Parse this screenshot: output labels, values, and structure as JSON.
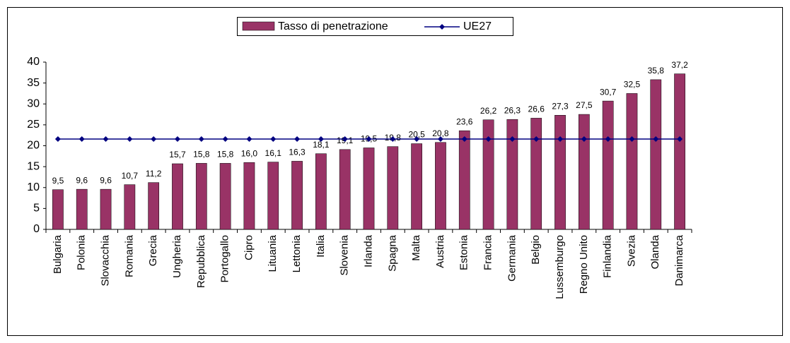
{
  "chart_data": {
    "type": "bar",
    "categories": [
      "Bulgaria",
      "Polonia",
      "Slovacchia",
      "Romania",
      "Grecia",
      "Ungheria",
      "Repubblica",
      "Portogallo",
      "Cipro",
      "Lituania",
      "Lettonia",
      "Italia",
      "Slovenia",
      "Irlanda",
      "Spagna",
      "Malta",
      "Austria",
      "Estonia",
      "Francia",
      "Germania",
      "Belgio",
      "Lussemburgo",
      "Regno Unito",
      "Finlandia",
      "Svezia",
      "Olanda",
      "Danimarca"
    ],
    "series": [
      {
        "name": "Tasso di penetrazione",
        "type": "bar",
        "color": "#993366",
        "values": [
          9.5,
          9.6,
          9.6,
          10.7,
          11.2,
          15.7,
          15.8,
          15.8,
          16.0,
          16.1,
          16.3,
          18.1,
          19.1,
          19.5,
          19.8,
          20.5,
          20.8,
          23.6,
          26.2,
          26.3,
          26.6,
          27.3,
          27.5,
          30.7,
          32.5,
          35.8,
          37.2
        ],
        "value_labels": [
          "9,5",
          "9,6",
          "9,6",
          "10,7",
          "11,2",
          "15,7",
          "15,8",
          "15,8",
          "16,0",
          "16,1",
          "16,3",
          "18,1",
          "19,1",
          "19,5",
          "19,8",
          "20,5",
          "20,8",
          "23,6",
          "26,2",
          "26,3",
          "26,6",
          "27,3",
          "27,5",
          "30,7",
          "32,5",
          "35,8",
          "37,2"
        ]
      },
      {
        "name": "UE27",
        "type": "line",
        "color": "#000080",
        "values": [
          21.6,
          21.6,
          21.6,
          21.6,
          21.6,
          21.6,
          21.6,
          21.6,
          21.6,
          21.6,
          21.6,
          21.6,
          21.6,
          21.6,
          21.6,
          21.6,
          21.6,
          21.6,
          21.6,
          21.6,
          21.6,
          21.6,
          21.6,
          21.6,
          21.6,
          21.6,
          21.6
        ]
      }
    ],
    "ylim": [
      0,
      40
    ],
    "yticks": [
      0,
      5,
      10,
      15,
      20,
      25,
      30,
      35,
      40
    ]
  }
}
